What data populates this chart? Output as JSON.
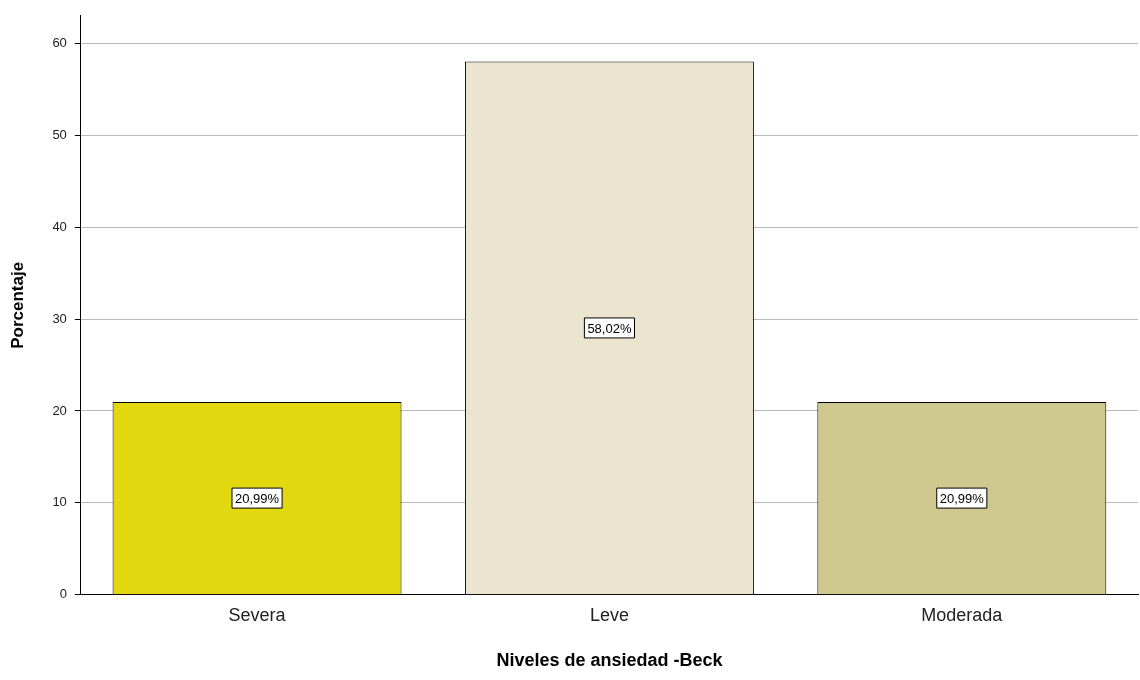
{
  "chart_data": {
    "type": "bar",
    "xlabel": "Niveles de ansiedad -Beck",
    "ylabel": "Porcentaje",
    "categories": [
      "Severa",
      "Leve",
      "Moderada"
    ],
    "values": [
      20.99,
      58.02,
      20.99
    ],
    "colors": [
      "#e2d810",
      "#ebe4cf",
      "#d0c98f"
    ],
    "value_labels": [
      "20,99%",
      "58,02%",
      "20,99%"
    ],
    "ylim": [
      0,
      63
    ],
    "yticks": [
      0,
      10,
      20,
      30,
      40,
      50,
      60
    ],
    "grid": "y",
    "legend": false
  }
}
